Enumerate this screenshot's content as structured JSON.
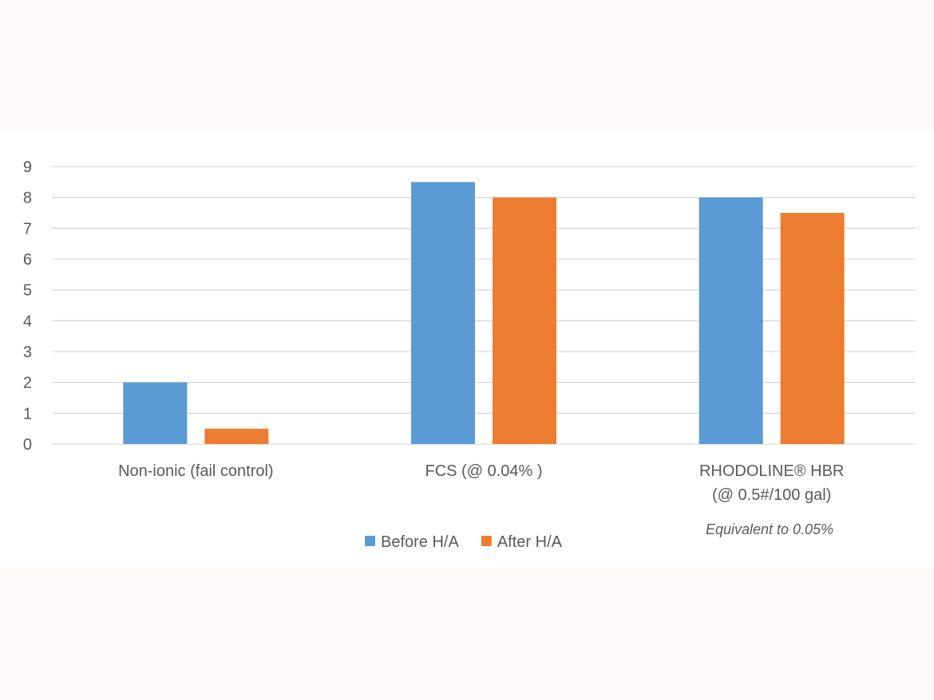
{
  "chart_data": {
    "type": "bar",
    "title": "",
    "xlabel": "",
    "ylabel": "",
    "ylim": [
      0,
      9
    ],
    "yticks": [
      "0",
      "1",
      "2",
      "3",
      "4",
      "5",
      "6",
      "7",
      "8",
      "9"
    ],
    "grid": true,
    "categories": [
      [
        "Non-ionic (fail control)"
      ],
      [
        "FCS (@ 0.04% )"
      ],
      [
        "RHODOLINE® HBR",
        "(@ 0.5#/100 gal)"
      ]
    ],
    "annotation": "Equivalent to 0.05%",
    "legend_position": "bottom",
    "series": [
      {
        "name": "Before H/A",
        "color": "#5b9bd5",
        "values": [
          2,
          8.5,
          8
        ]
      },
      {
        "name": "After H/A",
        "color": "#ed7d31",
        "values": [
          0.5,
          8,
          7.5
        ]
      }
    ]
  }
}
